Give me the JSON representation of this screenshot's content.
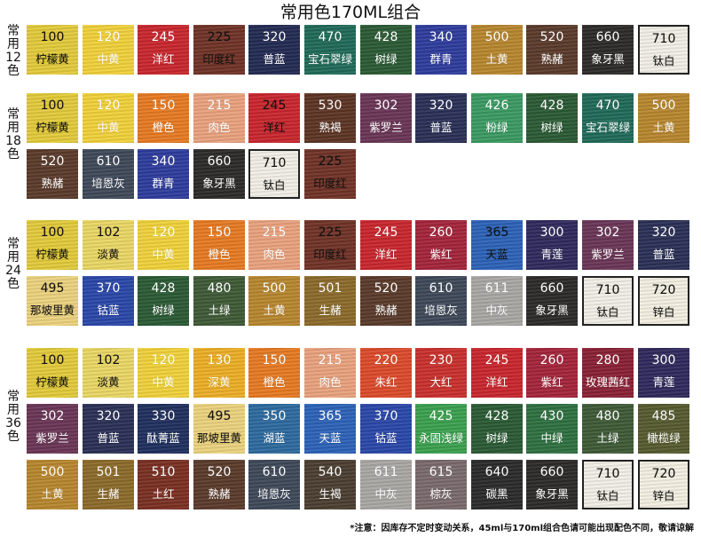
{
  "title": "常用色170ML组合",
  "note": "*注意：因库存不定时变动关系，45ml与170ml组合色请可能出现配色不同，敬请谅解",
  "groups": [
    {
      "label": "常用12色",
      "rows": [
        [
          {
            "num": "100",
            "name": "柠檬黄",
            "color": "#e3cb3a",
            "text": "#111111"
          },
          {
            "num": "120",
            "name": "中黄",
            "color": "#f1d13a",
            "text": "#ffffff"
          },
          {
            "num": "245",
            "name": "洋红",
            "color": "#c8262c",
            "text": "#ffffff"
          },
          {
            "num": "225",
            "name": "印度红",
            "color": "#703226",
            "text": "#111111"
          },
          {
            "num": "320",
            "name": "普蓝",
            "color": "#232a52",
            "text": "#ffffff"
          },
          {
            "num": "470",
            "name": "宝石翠绿",
            "color": "#1f6a58",
            "text": "#ffffff"
          },
          {
            "num": "428",
            "name": "树绿",
            "color": "#2a5a34",
            "text": "#ffffff"
          },
          {
            "num": "340",
            "name": "群青",
            "color": "#2e3c9c",
            "text": "#ffffff"
          },
          {
            "num": "500",
            "name": "土黄",
            "color": "#b7862e",
            "text": "#ffffff"
          },
          {
            "num": "520",
            "name": "熟赭",
            "color": "#5a3a2a",
            "text": "#ffffff"
          },
          {
            "num": "660",
            "name": "象牙黑",
            "color": "#2c2a28",
            "text": "#ffffff"
          },
          {
            "num": "710",
            "name": "钛白",
            "color": "#f1efe6",
            "text": "#111111",
            "framed": true
          }
        ]
      ]
    },
    {
      "label": "常用18色",
      "rows": [
        [
          {
            "num": "100",
            "name": "柠檬黄",
            "color": "#e3cb3a",
            "text": "#111111"
          },
          {
            "num": "120",
            "name": "中黄",
            "color": "#f1d13a",
            "text": "#ffffff"
          },
          {
            "num": "150",
            "name": "橙色",
            "color": "#e67a22",
            "text": "#ffffff"
          },
          {
            "num": "215",
            "name": "肉色",
            "color": "#e9a27e",
            "text": "#ffffff"
          },
          {
            "num": "245",
            "name": "洋红",
            "color": "#c8262c",
            "text": "#111111"
          },
          {
            "num": "530",
            "name": "熟褐",
            "color": "#5c3423",
            "text": "#ffffff"
          },
          {
            "num": "302",
            "name": "紫罗兰",
            "color": "#6a3556",
            "text": "#ffffff"
          },
          {
            "num": "320",
            "name": "普蓝",
            "color": "#2a3056",
            "text": "#ffffff"
          },
          {
            "num": "426",
            "name": "粉绿",
            "color": "#3a9a62",
            "text": "#ffffff"
          },
          {
            "num": "428",
            "name": "树绿",
            "color": "#2a5a34",
            "text": "#ffffff"
          },
          {
            "num": "470",
            "name": "宝石翠绿",
            "color": "#1f6a58",
            "text": "#ffffff"
          },
          {
            "num": "500",
            "name": "土黄",
            "color": "#b7862e",
            "text": "#ffffff"
          }
        ],
        [
          {
            "num": "520",
            "name": "熟赭",
            "color": "#5a3a2a",
            "text": "#ffffff"
          },
          {
            "num": "610",
            "name": "培恩灰",
            "color": "#3e4858",
            "text": "#ffffff"
          },
          {
            "num": "340",
            "name": "群青",
            "color": "#2e3c9c",
            "text": "#ffffff"
          },
          {
            "num": "660",
            "name": "象牙黑",
            "color": "#2c2a28",
            "text": "#ffffff"
          },
          {
            "num": "710",
            "name": "钛白",
            "color": "#f1efe6",
            "text": "#111111",
            "framed": true
          },
          {
            "num": "225",
            "name": "印度红",
            "color": "#703226",
            "text": "#111111"
          }
        ]
      ]
    },
    {
      "label": "常用 24 色",
      "rows": [
        [
          {
            "num": "100",
            "name": "柠檬黄",
            "color": "#e3cb3a",
            "text": "#111111"
          },
          {
            "num": "102",
            "name": "淡黄",
            "color": "#ead765",
            "text": "#111111"
          },
          {
            "num": "120",
            "name": "中黄",
            "color": "#f1d13a",
            "text": "#ffffff"
          },
          {
            "num": "150",
            "name": "橙色",
            "color": "#e67a22",
            "text": "#ffffff"
          },
          {
            "num": "215",
            "name": "肉色",
            "color": "#e9a27e",
            "text": "#ffffff"
          },
          {
            "num": "225",
            "name": "印度红",
            "color": "#703226",
            "text": "#111111"
          },
          {
            "num": "245",
            "name": "洋红",
            "color": "#c8262c",
            "text": "#ffffff"
          },
          {
            "num": "260",
            "name": "紫红",
            "color": "#a4243a",
            "text": "#ffffff"
          },
          {
            "num": "365",
            "name": "天蓝",
            "color": "#2c62b8",
            "text": "#111111"
          },
          {
            "num": "300",
            "name": "青莲",
            "color": "#30295c",
            "text": "#ffffff"
          },
          {
            "num": "302",
            "name": "紫罗兰",
            "color": "#6a3556",
            "text": "#ffffff"
          },
          {
            "num": "320",
            "name": "普蓝",
            "color": "#2a3056",
            "text": "#ffffff"
          }
        ],
        [
          {
            "num": "495",
            "name": "那坡里黄",
            "color": "#ecd27e",
            "text": "#111111"
          },
          {
            "num": "370",
            "name": "钴蓝",
            "color": "#2a47a8",
            "text": "#ffffff"
          },
          {
            "num": "428",
            "name": "树绿",
            "color": "#2a5a34",
            "text": "#ffffff"
          },
          {
            "num": "480",
            "name": "土绿",
            "color": "#3e5a36",
            "text": "#ffffff"
          },
          {
            "num": "500",
            "name": "土黄",
            "color": "#b7862e",
            "text": "#ffffff"
          },
          {
            "num": "501",
            "name": "生赭",
            "color": "#8c6a2a",
            "text": "#ffffff"
          },
          {
            "num": "520",
            "name": "熟赭",
            "color": "#5a3a2a",
            "text": "#ffffff"
          },
          {
            "num": "610",
            "name": "培恩灰",
            "color": "#3e4858",
            "text": "#ffffff"
          },
          {
            "num": "611",
            "name": "中灰",
            "color": "#a9a7a3",
            "text": "#ffffff"
          },
          {
            "num": "660",
            "name": "象牙黑",
            "color": "#2c2a28",
            "text": "#ffffff"
          },
          {
            "num": "710",
            "name": "钛白",
            "color": "#f1efe6",
            "text": "#111111",
            "framed": true
          },
          {
            "num": "720",
            "name": "锌白",
            "color": "#f3efe2",
            "text": "#111111",
            "framed": true
          }
        ]
      ]
    },
    {
      "label": "常用 36 色",
      "rows": [
        [
          {
            "num": "100",
            "name": "柠檬黄",
            "color": "#e3cb3a",
            "text": "#111111"
          },
          {
            "num": "102",
            "name": "淡黄",
            "color": "#ead765",
            "text": "#111111"
          },
          {
            "num": "120",
            "name": "中黄",
            "color": "#f1d13a",
            "text": "#ffffff"
          },
          {
            "num": "130",
            "name": "深黄",
            "color": "#ecae26",
            "text": "#ffffff"
          },
          {
            "num": "150",
            "name": "橙色",
            "color": "#e67a22",
            "text": "#ffffff"
          },
          {
            "num": "215",
            "name": "肉色",
            "color": "#e9a27e",
            "text": "#ffffff"
          },
          {
            "num": "220",
            "name": "朱红",
            "color": "#dc4a2a",
            "text": "#ffffff"
          },
          {
            "num": "230",
            "name": "大红",
            "color": "#c9302c",
            "text": "#ffffff"
          },
          {
            "num": "245",
            "name": "洋红",
            "color": "#c8262c",
            "text": "#ffffff"
          },
          {
            "num": "260",
            "name": "紫红",
            "color": "#a4243a",
            "text": "#ffffff"
          },
          {
            "num": "280",
            "name": "玫瑰茜红",
            "color": "#8a1f34",
            "text": "#ffffff"
          },
          {
            "num": "300",
            "name": "青莲",
            "color": "#30295c",
            "text": "#ffffff"
          }
        ],
        [
          {
            "num": "302",
            "name": "紫罗兰",
            "color": "#6a3556",
            "text": "#ffffff"
          },
          {
            "num": "320",
            "name": "普蓝",
            "color": "#2a3056",
            "text": "#ffffff"
          },
          {
            "num": "330",
            "name": "酞菁蓝",
            "color": "#1f2f5e",
            "text": "#ffffff"
          },
          {
            "num": "495",
            "name": "那坡里黄",
            "color": "#ecd27e",
            "text": "#111111"
          },
          {
            "num": "350",
            "name": "湖蓝",
            "color": "#2c6a9e",
            "text": "#ffffff"
          },
          {
            "num": "365",
            "name": "天蓝",
            "color": "#2c62b8",
            "text": "#ffffff"
          },
          {
            "num": "370",
            "name": "钴蓝",
            "color": "#2a47a8",
            "text": "#ffffff"
          },
          {
            "num": "425",
            "name": "永固浅绿",
            "color": "#3aa04e",
            "text": "#ffffff"
          },
          {
            "num": "428",
            "name": "树绿",
            "color": "#2a5a34",
            "text": "#ffffff"
          },
          {
            "num": "430",
            "name": "中绿",
            "color": "#2e7040",
            "text": "#ffffff"
          },
          {
            "num": "480",
            "name": "土绿",
            "color": "#3e5a36",
            "text": "#ffffff"
          },
          {
            "num": "485",
            "name": "橄榄绿",
            "color": "#565a2e",
            "text": "#ffffff"
          }
        ],
        [
          {
            "num": "500",
            "name": "土黄",
            "color": "#b7862e",
            "text": "#ffffff"
          },
          {
            "num": "501",
            "name": "生赭",
            "color": "#8c6a2a",
            "text": "#ffffff"
          },
          {
            "num": "510",
            "name": "土红",
            "color": "#7a2f22",
            "text": "#ffffff"
          },
          {
            "num": "520",
            "name": "熟赭",
            "color": "#5a3a2a",
            "text": "#ffffff"
          },
          {
            "num": "610",
            "name": "培恩灰",
            "color": "#3e4858",
            "text": "#ffffff"
          },
          {
            "num": "540",
            "name": "生褐",
            "color": "#4a3e30",
            "text": "#ffffff"
          },
          {
            "num": "611",
            "name": "中灰",
            "color": "#a9a7a3",
            "text": "#ffffff"
          },
          {
            "num": "615",
            "name": "棕灰",
            "color": "#7a6a6c",
            "text": "#ffffff"
          },
          {
            "num": "640",
            "name": "碳黑",
            "color": "#2a2a2a",
            "text": "#ffffff"
          },
          {
            "num": "660",
            "name": "象牙黑",
            "color": "#2c2a28",
            "text": "#ffffff"
          },
          {
            "num": "710",
            "name": "钛白",
            "color": "#f1efe6",
            "text": "#111111",
            "framed": true
          },
          {
            "num": "720",
            "name": "锌白",
            "color": "#f3efe2",
            "text": "#111111",
            "framed": true
          }
        ]
      ]
    }
  ]
}
